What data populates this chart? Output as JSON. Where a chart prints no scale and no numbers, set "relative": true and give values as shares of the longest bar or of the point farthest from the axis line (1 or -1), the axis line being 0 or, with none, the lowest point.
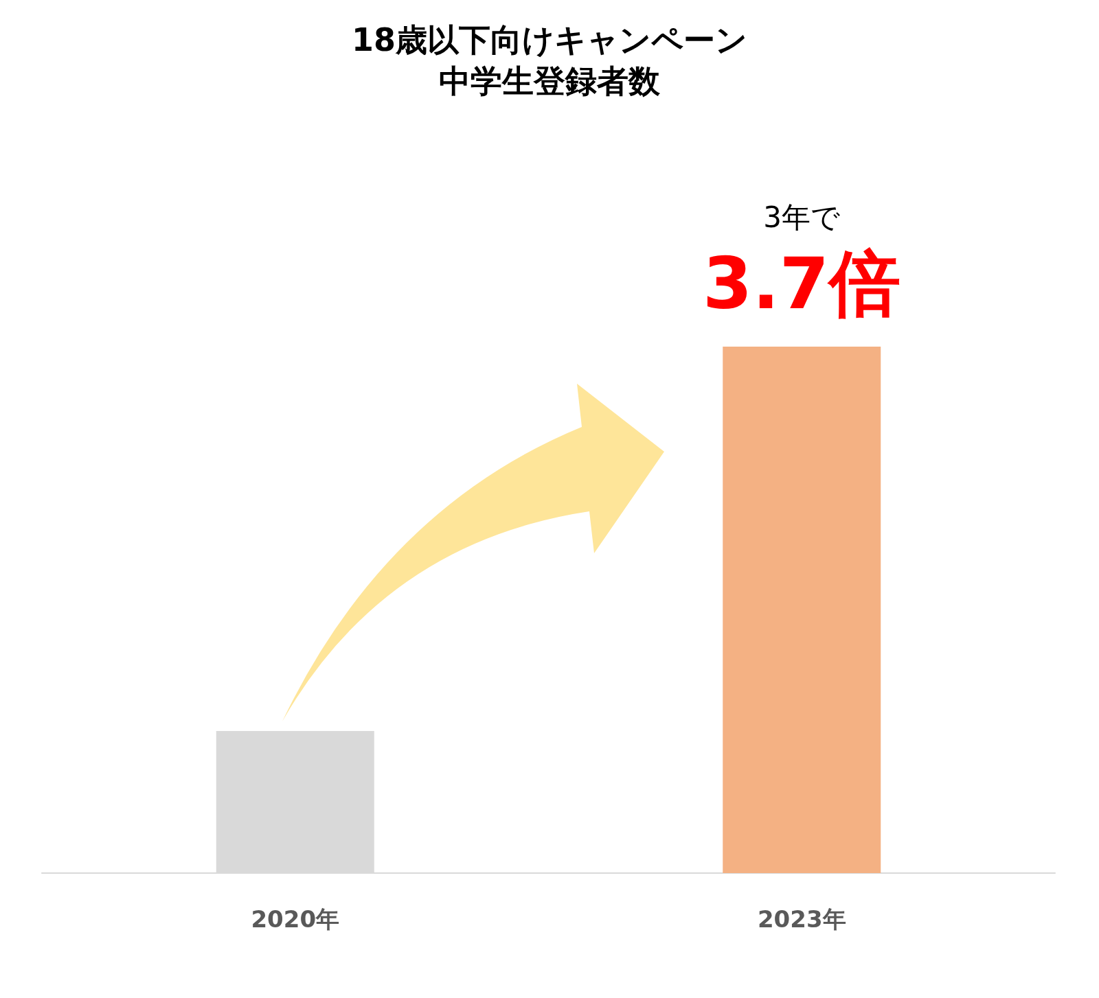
{
  "chart_data": {
    "type": "bar",
    "title": "18歳以下向けキャンペーン",
    "subtitle": "中学生登録者数",
    "categories": [
      "2020年",
      "2023年"
    ],
    "values": [
      0.27,
      1
    ],
    "colors": [
      "#d9d9d9",
      "#f4b183"
    ],
    "relative": true,
    "grid": false,
    "annotations": [
      "3年で",
      "3.7倍"
    ]
  }
}
